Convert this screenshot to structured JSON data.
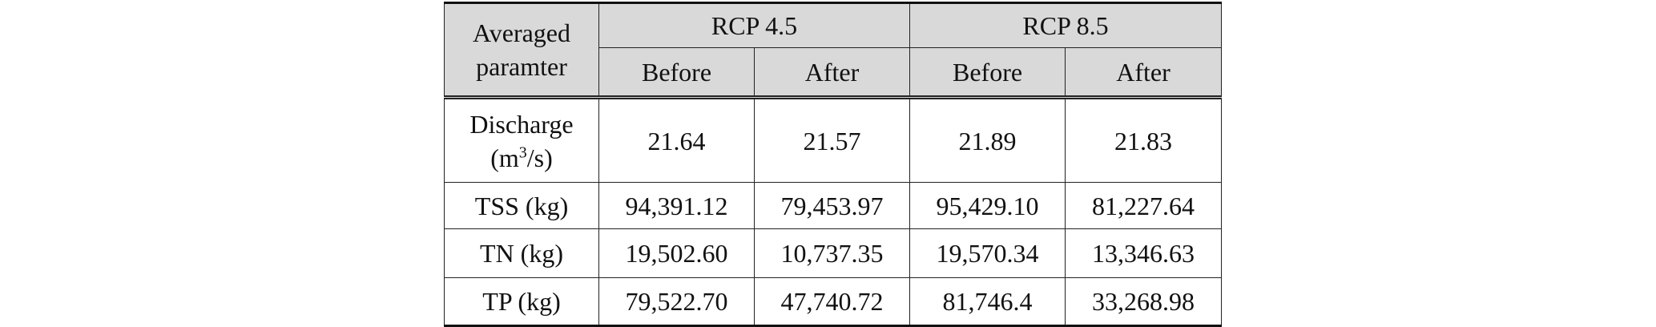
{
  "table": {
    "header": {
      "param": [
        "Averaged",
        "paramter"
      ],
      "groups": [
        "RCP 4.5",
        "RCP 8.5"
      ],
      "sub": [
        "Before",
        "After",
        "Before",
        "After"
      ]
    },
    "rows": [
      {
        "label": "Discharge",
        "unit": [
          "(m",
          "3",
          "/s)"
        ],
        "values": [
          "21.64",
          "21.57",
          "21.89",
          "21.83"
        ]
      },
      {
        "label": "TSS (kg)",
        "values": [
          "94,391.12",
          "79,453.97",
          "95,429.10",
          "81,227.64"
        ]
      },
      {
        "label": "TN (kg)",
        "values": [
          "19,502.60",
          "10,737.35",
          "19,570.34",
          "13,346.63"
        ]
      },
      {
        "label": "TP (kg)",
        "values": [
          "79,522.70",
          "47,740.72",
          "81,746.4",
          "33,268.98"
        ]
      }
    ]
  }
}
